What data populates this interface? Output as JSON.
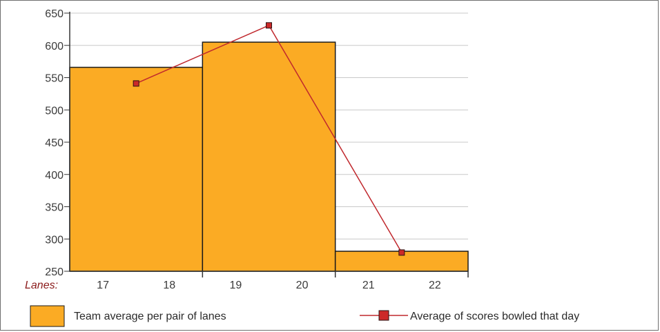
{
  "chart_data": {
    "type": "bar",
    "x_axis_title": "Lanes:",
    "lanes": [
      "17",
      "18",
      "19",
      "20",
      "21",
      "22"
    ],
    "lane_pairs": [
      [
        "17",
        "18"
      ],
      [
        "19",
        "20"
      ],
      [
        "21",
        "22"
      ]
    ],
    "ylim": [
      250,
      650
    ],
    "yticks": [
      250,
      300,
      350,
      400,
      450,
      500,
      550,
      600,
      650
    ],
    "grid": true,
    "series": [
      {
        "name": "Team average per pair of lanes",
        "kind": "bar",
        "values": [
          566,
          605,
          281
        ],
        "color": "#fbab24",
        "edge_color": "#1a1a1a"
      },
      {
        "name": "Average of scores bowled that day",
        "kind": "line",
        "values": [
          541,
          631,
          279
        ],
        "color": "#c0282d",
        "marker_color": "#cc2929"
      }
    ],
    "legend_position": "bottom"
  },
  "colors": {
    "grid": "#c8c8c8",
    "axis": "#333333"
  }
}
